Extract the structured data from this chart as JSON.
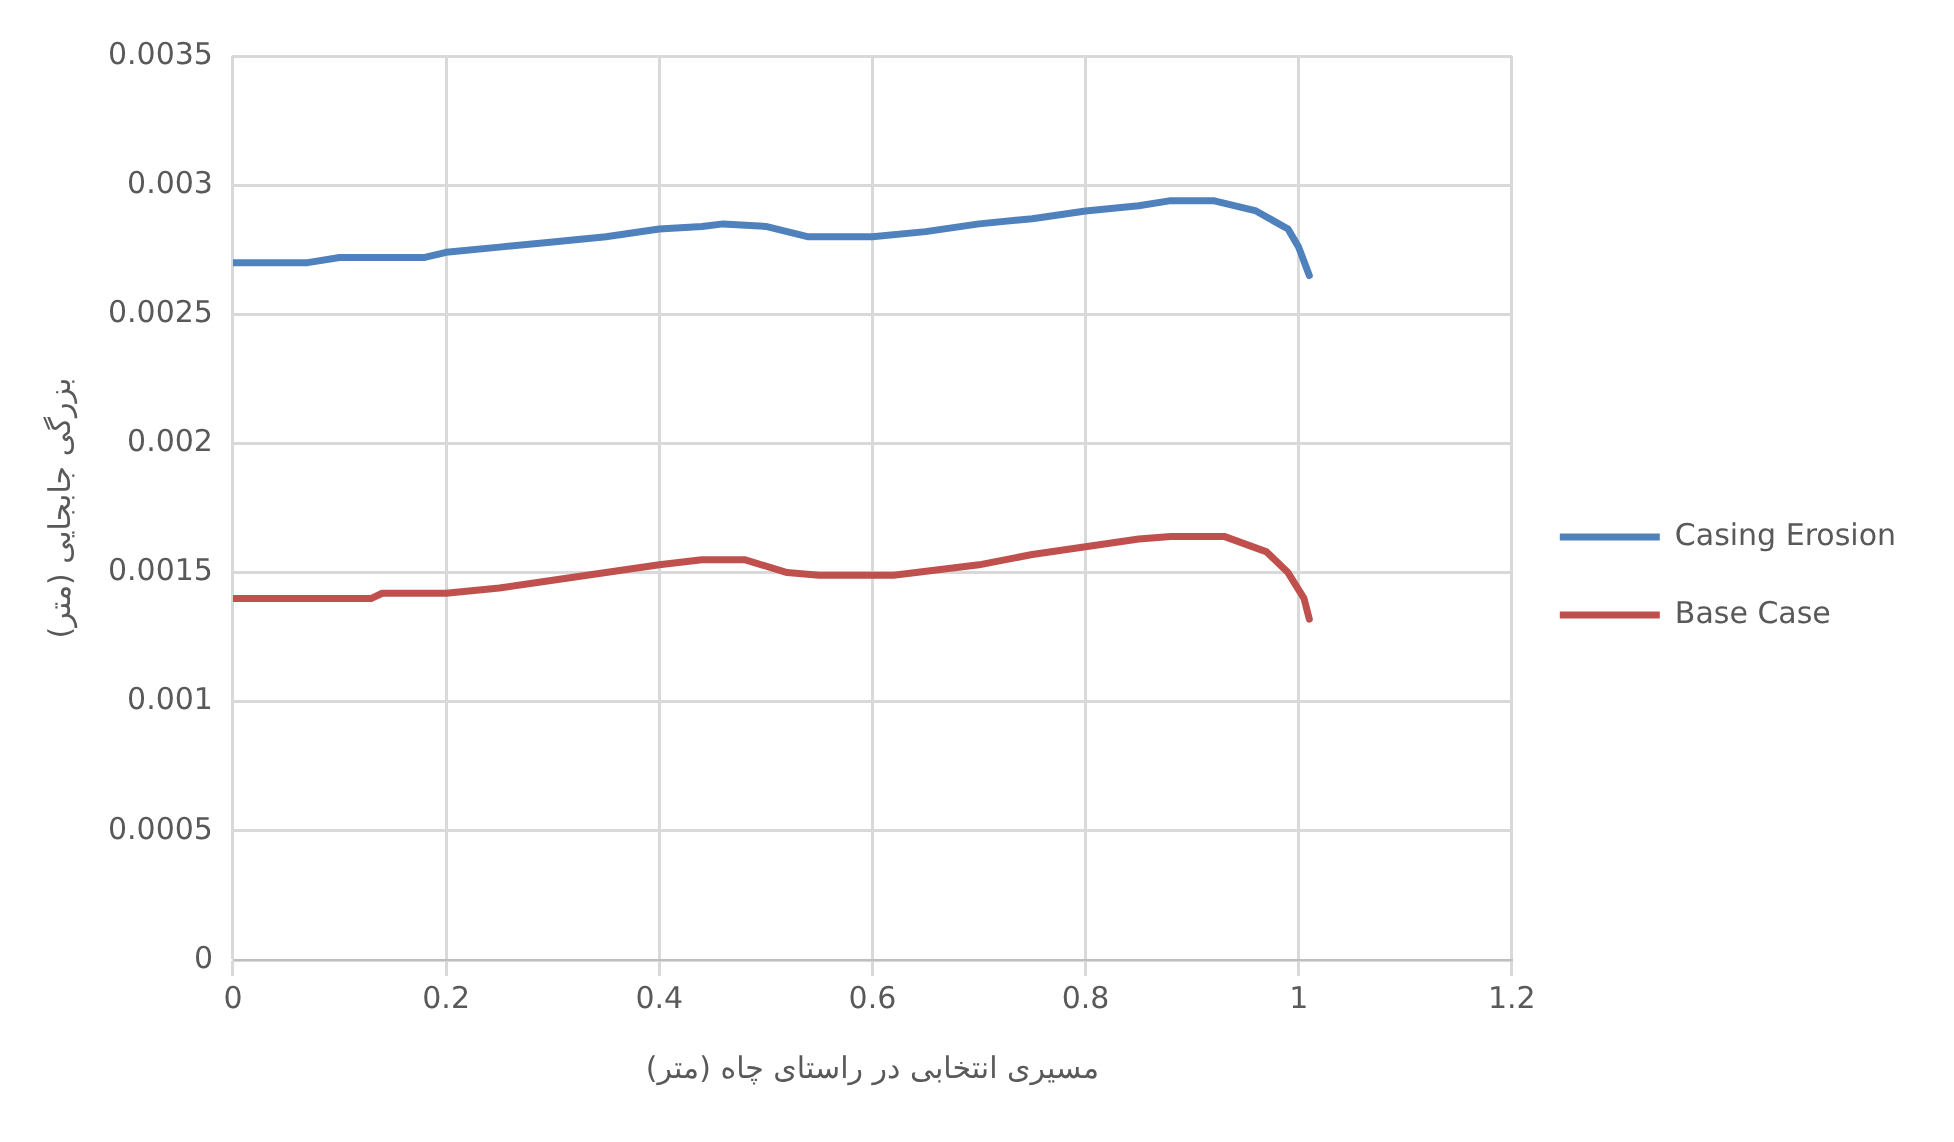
{
  "chart_data": {
    "type": "line",
    "xlabel": "مسیری انتخابی در راستای چاه (متر)",
    "ylabel": "بزرگی جابجایی (متر)",
    "xlim": [
      0,
      1.2
    ],
    "xticks": [
      0,
      0.2,
      0.4,
      0.6,
      0.8,
      1,
      1.2
    ],
    "ylim": [
      0,
      0.0035
    ],
    "yticks": [
      0,
      0.0005,
      0.001,
      0.0015,
      0.002,
      0.0025,
      0.003,
      0.0035
    ],
    "grid": true,
    "legend": "right",
    "marker": "none",
    "line_style": "solid",
    "series": [
      {
        "name": "Casing Erosion",
        "color": "#4f81bd",
        "x": [
          0,
          0.07,
          0.1,
          0.18,
          0.2,
          0.25,
          0.3,
          0.35,
          0.4,
          0.44,
          0.46,
          0.5,
          0.54,
          0.6,
          0.65,
          0.7,
          0.75,
          0.8,
          0.85,
          0.88,
          0.92,
          0.96,
          0.99,
          1.0,
          1.01
        ],
        "values": [
          0.0027,
          0.0027,
          0.00272,
          0.00272,
          0.00274,
          0.00276,
          0.00278,
          0.0028,
          0.00283,
          0.00284,
          0.00285,
          0.00284,
          0.0028,
          0.0028,
          0.00282,
          0.00285,
          0.00287,
          0.0029,
          0.00292,
          0.00294,
          0.00294,
          0.0029,
          0.00283,
          0.00276,
          0.00265
        ]
      },
      {
        "name": "Base Case",
        "color": "#c0504d",
        "x": [
          0,
          0.13,
          0.14,
          0.2,
          0.25,
          0.3,
          0.35,
          0.4,
          0.44,
          0.48,
          0.52,
          0.55,
          0.62,
          0.7,
          0.75,
          0.8,
          0.85,
          0.88,
          0.93,
          0.97,
          0.99,
          1.005,
          1.01
        ],
        "values": [
          0.0014,
          0.0014,
          0.00142,
          0.00142,
          0.00144,
          0.00147,
          0.0015,
          0.00153,
          0.00155,
          0.00155,
          0.0015,
          0.00149,
          0.00149,
          0.00153,
          0.00157,
          0.0016,
          0.00163,
          0.00164,
          0.00164,
          0.00158,
          0.0015,
          0.0014,
          0.00132
        ]
      }
    ]
  }
}
